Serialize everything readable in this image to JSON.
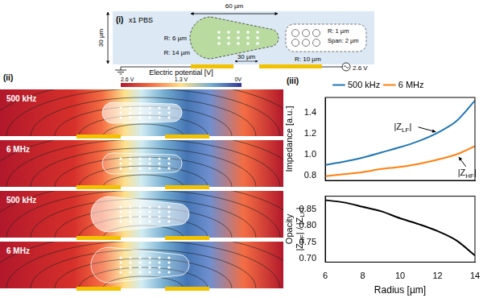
{
  "setup": {
    "label": "(i)",
    "medium": "x1 PBS",
    "channel_height": "30 µm",
    "cell_length": "60 µm",
    "cell_small_radius": "R: 6 µm",
    "cell_large_radius": "R: 14 µm",
    "electrode_gap": "30 µm",
    "electrode_radius": "R: 10 µm",
    "nucleus_radius": "R: 1 µm",
    "nucleus_span": "Span: 2 µm",
    "voltage": "2.6 V"
  },
  "simulation": {
    "label": "(ii)",
    "colorbar": {
      "title": "Electric potential [V]",
      "ticks": [
        "2.6 V",
        "1.3 V",
        "0V"
      ]
    },
    "frames": [
      "500 kHz",
      "6 MHz",
      "500 kHz",
      "6 MHz"
    ]
  },
  "plots": {
    "label": "(iii)"
  },
  "chart_data": [
    {
      "type": "line",
      "y_label": "Impedance [a.u.]",
      "x": [
        6,
        7,
        8,
        9,
        10,
        11,
        12,
        13,
        14
      ],
      "series": [
        {
          "name": "500 kHz",
          "color": "#1f77b4",
          "values": [
            0.9,
            0.93,
            0.97,
            1.02,
            1.07,
            1.13,
            1.21,
            1.32,
            1.52
          ]
        },
        {
          "name": "6 MHz",
          "color": "#ff7f0e",
          "values": [
            0.79,
            0.81,
            0.83,
            0.86,
            0.88,
            0.91,
            0.95,
            1.0,
            1.08
          ]
        }
      ],
      "xlim": [
        6,
        14
      ],
      "xticks": [
        6,
        8,
        10,
        12,
        14
      ],
      "ylim": [
        0.75,
        1.55
      ],
      "yticks": [
        0.8,
        {
          "value": 1.0,
          "label": "1.0"
        },
        1.2,
        1.4
      ],
      "legend": "top",
      "grid": false,
      "tick_labels": "y",
      "annotations": [
        {
          "parts": [
            "|Z",
            "LF",
            "|"
          ]
        },
        {
          "parts": [
            "|Z",
            "HF",
            "|"
          ]
        }
      ]
    },
    {
      "type": "line",
      "x_label": "Radius [µm]",
      "y_label": [
        {
          "parts": [
            "Opacity"
          ]
        },
        {
          "parts": [
            "|Z",
            "HF",
            "| / |Z",
            "LF",
            "|"
          ]
        }
      ],
      "x": [
        6,
        7,
        8,
        9,
        10,
        11,
        12,
        13,
        14
      ],
      "series": [
        {
          "color": "#000000",
          "values": [
            0.878,
            0.871,
            0.858,
            0.844,
            0.823,
            0.805,
            0.784,
            0.756,
            0.71
          ]
        }
      ],
      "xlim": [
        6,
        14
      ],
      "xticks": [
        6,
        8,
        10,
        12,
        14
      ],
      "ylim": [
        0.69,
        0.89
      ],
      "yticks": [
        {
          "value": 0.7,
          "label": "0.70"
        },
        {
          "value": 0.75,
          "label": "0.75"
        },
        {
          "value": 0.8,
          "label": "0.80"
        },
        {
          "value": 0.85,
          "label": "0.85"
        }
      ],
      "grid": false
    }
  ]
}
